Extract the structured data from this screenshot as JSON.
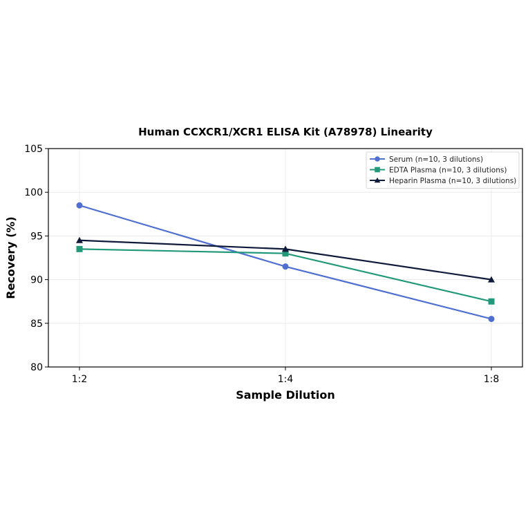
{
  "chart_data": {
    "type": "line",
    "title": "Human CCXCR1/XCR1 ELISA Kit (A78978) Linearity",
    "xlabel": "Sample Dilution",
    "ylabel": "Recovery (%)",
    "categories": [
      "1:2",
      "1:4",
      "1:8"
    ],
    "ylim": [
      80,
      105
    ],
    "yticks": [
      80,
      85,
      90,
      95,
      100,
      105
    ],
    "grid": true,
    "legend_position": "top-right",
    "series": [
      {
        "name": "Serum (n=10, 3 dilutions)",
        "values": [
          98.5,
          91.5,
          85.5
        ],
        "color": "#4f6fd1",
        "marker": "circle"
      },
      {
        "name": "EDTA Plasma (n=10, 3 dilutions)",
        "values": [
          93.5,
          93.0,
          87.5
        ],
        "color": "#22997a",
        "marker": "square"
      },
      {
        "name": "Heparin Plasma (n=10, 3 dilutions)",
        "values": [
          94.5,
          93.5,
          90.0
        ],
        "color": "#101a3a",
        "marker": "triangle"
      }
    ]
  }
}
